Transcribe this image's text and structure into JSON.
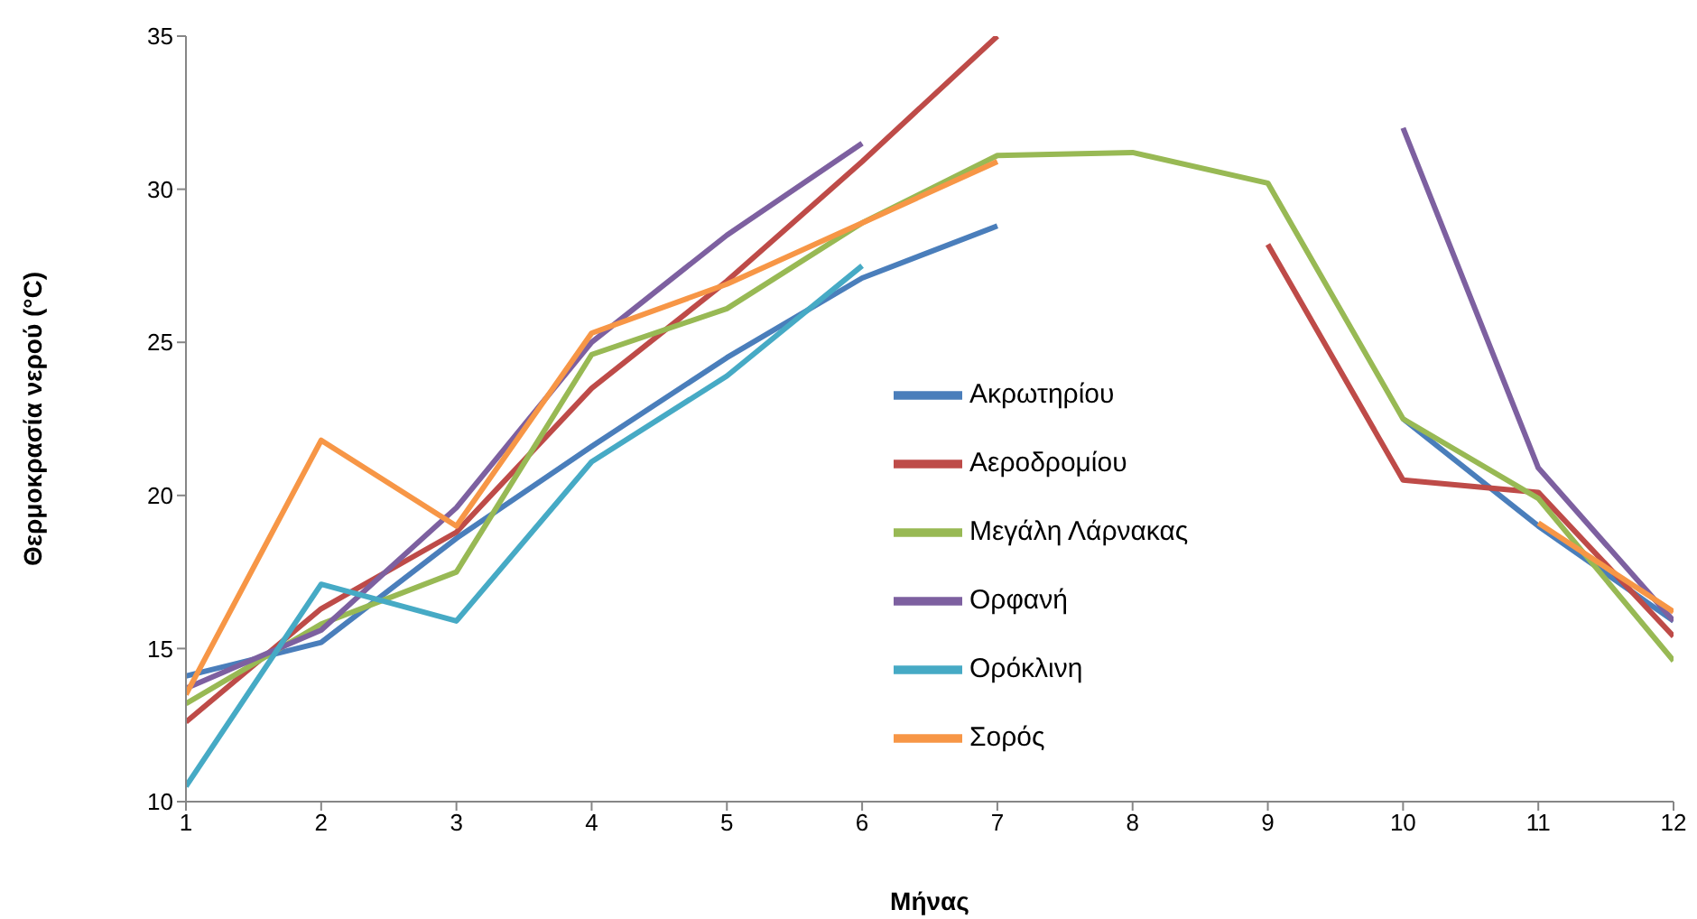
{
  "chart_data": {
    "type": "line",
    "xlabel": "Μήνας",
    "ylabel": "Θερμοκρασία νερού (°C)",
    "x": [
      1,
      2,
      3,
      4,
      5,
      6,
      7,
      8,
      9,
      10,
      11,
      12
    ],
    "xlim": [
      1,
      12
    ],
    "xticks": [
      1,
      2,
      3,
      4,
      5,
      6,
      7,
      8,
      9,
      10,
      11,
      12
    ],
    "ylim": [
      10,
      35
    ],
    "yticks": [
      10,
      15,
      20,
      25,
      30,
      35
    ],
    "legend": "right",
    "marker": "none",
    "line_style": "solid",
    "series": [
      {
        "name": "Ακρωτηρίου",
        "color": "#4a7ebb",
        "values": [
          14.1,
          15.2,
          18.6,
          21.6,
          24.5,
          27.1,
          28.8,
          null,
          null,
          22.5,
          19.0,
          15.9
        ]
      },
      {
        "name": "Αεροδρομίου",
        "color": "#be4b48",
        "values": [
          12.6,
          16.3,
          18.8,
          23.5,
          27.0,
          30.9,
          35.0,
          null,
          28.2,
          20.5,
          20.1,
          15.4
        ]
      },
      {
        "name": "Μεγάλη Λάρνακας",
        "color": "#98b954",
        "values": [
          13.2,
          15.8,
          17.5,
          24.6,
          26.1,
          28.9,
          31.1,
          31.2,
          30.2,
          22.5,
          19.9,
          14.6
        ]
      },
      {
        "name": "Ορφανή",
        "color": "#7d60a0",
        "values": [
          13.7,
          15.6,
          19.6,
          25.0,
          28.5,
          31.5,
          null,
          null,
          null,
          32.0,
          20.9,
          15.9
        ]
      },
      {
        "name": "Ορόκλινη",
        "color": "#46aac5",
        "values": [
          10.5,
          17.1,
          15.9,
          21.1,
          23.9,
          27.5,
          null,
          null,
          null,
          null,
          null,
          null
        ]
      },
      {
        "name": "Σορός",
        "color": "#f79646",
        "values": [
          13.5,
          21.8,
          19.0,
          25.3,
          26.9,
          28.9,
          30.9,
          null,
          null,
          null,
          19.1,
          16.2
        ]
      }
    ]
  }
}
